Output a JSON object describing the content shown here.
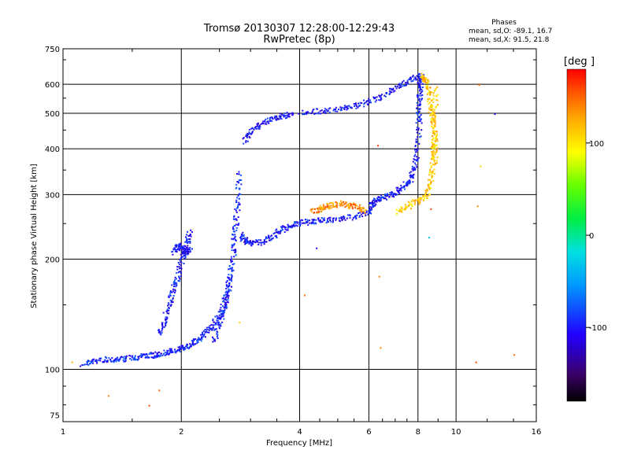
{
  "chart_data": {
    "type": "scatter",
    "title_line1": "Tromsø 20130307 12:28:00-12:29:43",
    "title_line2": "RwPretec (8p)",
    "xlabel": "Frequency [MHz]",
    "ylabel": "Stationary phase Virtual Height [km]",
    "x_scale": "log",
    "y_scale": "log",
    "xlim": [
      1,
      16
    ],
    "ylim": [
      72,
      750
    ],
    "x_ticks": [
      1,
      2,
      4,
      6,
      8,
      10,
      16
    ],
    "x_tick_labels": [
      "1",
      "2",
      "4",
      "6",
      "8",
      "10",
      "16"
    ],
    "y_ticks": [
      75,
      100,
      200,
      300,
      400,
      500,
      600,
      750
    ],
    "y_tick_labels": [
      "75",
      "100",
      "200",
      "300",
      "400",
      "500",
      "600",
      "750"
    ],
    "x_grid": [
      2,
      4,
      6,
      8,
      10
    ],
    "y_grid": [
      100,
      200,
      300,
      400,
      500,
      600
    ],
    "grid": true,
    "stats": {
      "heading": "Phases",
      "line_o": "mean, sd,O: -89.1, 16.7",
      "line_x": "mean, sd,X:  91.5, 21.8"
    },
    "colorbar": {
      "label": "[deg",
      "range": [
        -180,
        180
      ],
      "ticks": [
        100,
        0,
        -100
      ],
      "tick_labels": [
        "100",
        "0",
        "-100"
      ]
    },
    "traces": [
      {
        "name": "",
        "color_phase": -95,
        "x": [
          1.12,
          1.2,
          1.3,
          1.4,
          1.5,
          1.6,
          1.7,
          1.8,
          1.9,
          2.0,
          2.1,
          2.2,
          2.3,
          2.4,
          2.5,
          2.55,
          2.6,
          2.65
        ],
        "y": [
          104,
          106,
          107,
          107,
          108,
          109,
          110,
          111,
          113,
          115,
          117,
          121,
          126,
          133,
          140,
          150,
          162,
          180
        ]
      },
      {
        "name": "",
        "color_phase": -100,
        "x": [
          1.75,
          1.8,
          1.85,
          1.9,
          1.95,
          2.0,
          2.05,
          2.1
        ],
        "y": [
          125,
          135,
          150,
          165,
          180,
          200,
          220,
          240
        ]
      },
      {
        "name": "",
        "color_phase": -105,
        "x": [
          1.9,
          1.95,
          2.0,
          2.05,
          2.1
        ],
        "y": [
          210,
          220,
          212,
          208,
          215
        ]
      },
      {
        "name": "",
        "color_phase": -95,
        "x": [
          2.4,
          2.5,
          2.6,
          2.65,
          2.7,
          2.72,
          2.75,
          2.78,
          2.8
        ],
        "y": [
          120,
          135,
          155,
          180,
          205,
          230,
          260,
          300,
          350
        ]
      },
      {
        "name": "",
        "color_phase": -100,
        "x": [
          2.8,
          2.9,
          3.0,
          3.2,
          3.4,
          3.6,
          3.8,
          4.0,
          4.3,
          4.6,
          5.0,
          5.5,
          6.0,
          6.2
        ],
        "y": [
          235,
          225,
          222,
          224,
          232,
          242,
          248,
          252,
          255,
          256,
          258,
          262,
          270,
          285
        ]
      },
      {
        "name": "",
        "color_phase": 135,
        "x": [
          4.3,
          4.5,
          4.7,
          5.0,
          5.3,
          5.6,
          5.9
        ],
        "y": [
          270,
          276,
          280,
          285,
          282,
          278,
          272
        ]
      },
      {
        "name": "",
        "color_phase": -100,
        "x": [
          6.0,
          6.3,
          6.6,
          7.0,
          7.3,
          7.6,
          7.8,
          7.95,
          8.05
        ],
        "y": [
          285,
          292,
          298,
          305,
          315,
          330,
          355,
          400,
          480
        ]
      },
      {
        "name": "",
        "color_phase": -100,
        "x": [
          8.0,
          8.02,
          8.05,
          8.08,
          8.1
        ],
        "y": [
          480,
          530,
          580,
          620,
          640
        ]
      },
      {
        "name": "",
        "color_phase": 110,
        "x": [
          7.0,
          7.5,
          8.0,
          8.4,
          8.6,
          8.7,
          8.75,
          8.8,
          8.8
        ],
        "y": [
          270,
          280,
          290,
          300,
          330,
          370,
          420,
          500,
          600
        ]
      },
      {
        "name": "",
        "color_phase": -105,
        "x": [
          2.9,
          3.0,
          3.2,
          3.4,
          3.6,
          3.8
        ],
        "y": [
          420,
          450,
          470,
          485,
          495,
          500
        ]
      },
      {
        "name": "",
        "color_phase": -100,
        "x": [
          4.0,
          4.5,
          5.0,
          5.5,
          6.0,
          6.5,
          7.0,
          7.5,
          7.9
        ],
        "y": [
          505,
          510,
          515,
          525,
          540,
          560,
          590,
          615,
          630
        ]
      },
      {
        "name": "",
        "color_phase": 115,
        "x": [
          8.2,
          8.35,
          8.5,
          8.6,
          8.7,
          8.8,
          8.8,
          8.8
        ],
        "y": [
          640,
          615,
          580,
          520,
          480,
          440,
          400,
          370
        ]
      }
    ],
    "scatter_outliers": {
      "x": [
        1.05,
        1.3,
        1.65,
        1.75,
        2.8,
        4.1,
        4.4,
        6.3,
        6.35,
        6.4,
        8.5,
        8.6,
        11.2,
        11.3,
        11.5,
        14.0,
        12.5,
        11.4
      ],
      "y": [
        105,
        85,
        80,
        88,
        135,
        160,
        215,
        410,
        180,
        115,
        230,
        275,
        105,
        280,
        360,
        110,
        500,
        600
      ],
      "phase": [
        120,
        140,
        160,
        150,
        110,
        150,
        -110,
        160,
        140,
        140,
        -40,
        160,
        160,
        140,
        110,
        150,
        -110,
        150
      ]
    }
  }
}
